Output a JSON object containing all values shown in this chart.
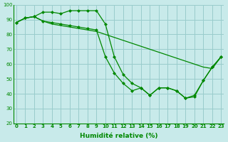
{
  "xlabel": "Humidité relative (%)",
  "x": [
    0,
    1,
    2,
    3,
    4,
    5,
    6,
    7,
    8,
    9,
    10,
    11,
    12,
    13,
    14,
    15,
    16,
    17,
    18,
    19,
    20,
    21,
    22,
    23
  ],
  "line1": [
    88,
    91,
    92,
    95,
    95,
    94,
    96,
    96,
    96,
    96,
    87,
    65,
    53,
    47,
    44,
    39,
    44,
    44,
    42,
    37,
    39,
    49,
    58,
    65
  ],
  "line2": [
    88,
    91,
    92,
    89,
    88,
    87,
    86,
    85,
    84,
    83,
    65,
    54,
    47,
    42,
    44,
    39,
    44,
    44,
    42,
    37,
    38,
    49,
    58,
    65
  ],
  "line3": [
    88,
    91,
    92,
    89,
    87,
    86,
    85,
    84,
    83,
    82,
    80,
    78,
    76,
    74,
    72,
    70,
    68,
    66,
    64,
    62,
    60,
    58,
    57,
    65
  ],
  "line_color": "#008800",
  "bg_color": "#c8eaea",
  "grid_color": "#99cccc",
  "ylim": [
    20,
    100
  ],
  "yticks": [
    20,
    30,
    40,
    50,
    60,
    70,
    80,
    90,
    100
  ],
  "xlim": [
    -0.3,
    23.3
  ],
  "marker": "D",
  "marker_size": 2.0,
  "line_width": 0.9,
  "tick_fontsize": 5.0,
  "xlabel_fontsize": 6.5
}
